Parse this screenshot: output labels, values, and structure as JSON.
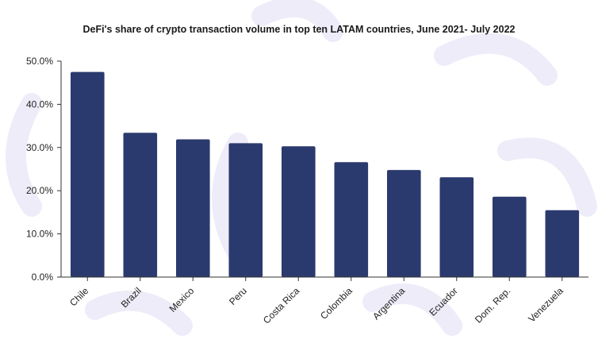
{
  "chart_data": {
    "type": "bar",
    "title": "DeFi's share of crypto transaction volume in top ten LATAM countries, June 2021- July 2022",
    "xlabel": "",
    "ylabel": "",
    "categories": [
      "Chile",
      "Brazil",
      "Mexico",
      "Peru",
      "Costa Rica",
      "Colombia",
      "Argentina",
      "Ecuador",
      "Dom. Rep.",
      "Venezuela"
    ],
    "values": [
      47.5,
      33.4,
      31.9,
      31.0,
      30.3,
      26.6,
      24.8,
      23.1,
      18.6,
      15.5
    ],
    "ylim": [
      0,
      50
    ],
    "yticks": [
      0,
      10,
      20,
      30,
      40,
      50
    ],
    "ytick_labels": [
      "0.0%",
      "10.0%",
      "20.0%",
      "30.0%",
      "40.0%",
      "50.0%"
    ],
    "grid": false,
    "bar_color": "#2b3a6e"
  },
  "colors": {
    "axis": "#333333",
    "watermark": "#eceaf8"
  }
}
